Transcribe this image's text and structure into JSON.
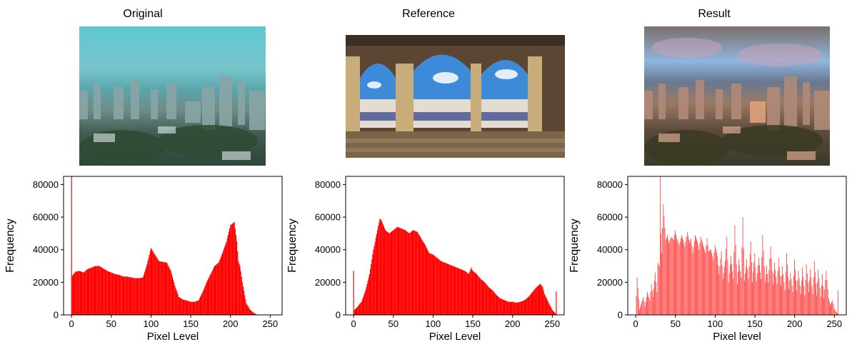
{
  "panels": [
    {
      "title": "Original",
      "image": "original-photo-city-skyline",
      "tint": "#4fb8c4"
    },
    {
      "title": "Reference",
      "image": "reference-photo-cloister-arches",
      "tint": "#c9b48f"
    },
    {
      "title": "Result",
      "image": "result-photo-city-skyline",
      "tint": "#8a7a6a"
    }
  ],
  "colors": {
    "bars": "#ff0000",
    "axis": "#000000"
  },
  "chart_data": [
    {
      "type": "bar",
      "title": "",
      "xlabel": "Pixel Level",
      "ylabel": "Frequency",
      "xlim": [
        -10,
        265
      ],
      "ylim": [
        0,
        85000
      ],
      "xticks": [
        0,
        50,
        100,
        150,
        200,
        250
      ],
      "yticks": [
        0,
        20000,
        40000,
        60000,
        80000
      ],
      "x": [
        0,
        1,
        5,
        10,
        15,
        20,
        25,
        30,
        35,
        40,
        45,
        50,
        55,
        60,
        65,
        70,
        75,
        80,
        85,
        90,
        95,
        100,
        105,
        110,
        115,
        120,
        125,
        130,
        135,
        140,
        145,
        150,
        155,
        160,
        165,
        170,
        175,
        180,
        185,
        190,
        195,
        200,
        205,
        208,
        210,
        212,
        215,
        218,
        220,
        225,
        230,
        233,
        235,
        240,
        255
      ],
      "values": [
        85000,
        24000,
        26500,
        27000,
        26000,
        28000,
        29000,
        30000,
        30000,
        28500,
        27000,
        26000,
        25000,
        24500,
        23500,
        23500,
        23000,
        22500,
        22500,
        23000,
        31000,
        41000,
        37000,
        33000,
        32500,
        32000,
        27000,
        18000,
        11000,
        9500,
        8800,
        8000,
        8000,
        9000,
        14000,
        20000,
        25000,
        30000,
        32000,
        38000,
        45000,
        55000,
        57000,
        45000,
        33000,
        30000,
        20000,
        12000,
        7000,
        3000,
        1000,
        300,
        0,
        0,
        0
      ]
    },
    {
      "type": "bar",
      "title": "",
      "xlabel": "Pixel Level",
      "ylabel": "Frequency",
      "xlim": [
        -10,
        265
      ],
      "ylim": [
        0,
        85000
      ],
      "xticks": [
        0,
        50,
        100,
        150,
        200,
        250
      ],
      "yticks": [
        0,
        20000,
        40000,
        60000,
        80000
      ],
      "x": [
        0,
        1,
        3,
        5,
        8,
        10,
        15,
        20,
        25,
        30,
        33,
        35,
        40,
        45,
        50,
        55,
        60,
        65,
        70,
        75,
        80,
        85,
        90,
        95,
        100,
        105,
        110,
        115,
        120,
        125,
        130,
        135,
        140,
        145,
        148,
        150,
        155,
        160,
        165,
        170,
        175,
        180,
        185,
        190,
        195,
        200,
        205,
        210,
        215,
        220,
        225,
        230,
        235,
        238,
        240,
        245,
        250,
        254,
        255
      ],
      "values": [
        27000,
        3000,
        4000,
        5000,
        7000,
        8000,
        15000,
        25000,
        40000,
        52000,
        59000,
        58000,
        52000,
        50000,
        52000,
        54000,
        53000,
        52000,
        50000,
        52000,
        51000,
        47000,
        43000,
        38000,
        37000,
        35000,
        33000,
        32000,
        31000,
        30000,
        29000,
        28000,
        27000,
        25000,
        29000,
        27000,
        25000,
        22000,
        20000,
        17000,
        15000,
        12000,
        10000,
        9000,
        8000,
        8000,
        7500,
        8000,
        9000,
        11000,
        14000,
        17000,
        19000,
        17000,
        13000,
        8000,
        3000,
        1000,
        14500
      ]
    },
    {
      "type": "bar",
      "title": "",
      "xlabel": "Pixel level",
      "ylabel": "Frequency",
      "xlim": [
        -10,
        265
      ],
      "ylim": [
        0,
        85000
      ],
      "xticks": [
        0,
        50,
        100,
        150,
        200,
        250
      ],
      "yticks": [
        0,
        20000,
        40000,
        60000,
        80000
      ],
      "x": [
        0,
        2,
        5,
        8,
        10,
        12,
        15,
        18,
        20,
        22,
        25,
        27,
        28,
        30,
        31,
        32,
        33,
        35,
        38,
        40,
        42,
        45,
        48,
        50,
        52,
        55,
        58,
        60,
        62,
        65,
        68,
        70,
        72,
        75,
        78,
        80,
        82,
        85,
        88,
        90,
        92,
        95,
        98,
        100,
        103,
        105,
        108,
        110,
        113,
        115,
        117,
        120,
        123,
        125,
        128,
        130,
        133,
        135,
        137,
        140,
        142,
        145,
        147,
        150,
        152,
        155,
        158,
        160,
        163,
        165,
        167,
        170,
        173,
        175,
        178,
        180,
        183,
        185,
        188,
        190,
        193,
        195,
        198,
        200,
        203,
        205,
        208,
        210,
        213,
        215,
        218,
        220,
        223,
        225,
        228,
        230,
        233,
        235,
        237,
        240,
        243,
        245,
        248,
        250,
        252,
        254,
        255
      ],
      "values": [
        0,
        23000,
        3000,
        8000,
        11000,
        5000,
        14000,
        9000,
        19000,
        11000,
        26000,
        14000,
        32000,
        30000,
        85000,
        50000,
        38000,
        68000,
        46000,
        49000,
        44000,
        48000,
        46000,
        52000,
        47000,
        43000,
        49000,
        46000,
        42000,
        51000,
        44000,
        47000,
        38000,
        49000,
        45000,
        40000,
        48000,
        43000,
        38000,
        47000,
        39000,
        40000,
        34000,
        43000,
        36000,
        25000,
        39000,
        22000,
        33000,
        48000,
        20000,
        36000,
        22000,
        55000,
        19000,
        34000,
        23000,
        60000,
        21000,
        34000,
        22000,
        45000,
        20000,
        38000,
        21000,
        35000,
        22000,
        49000,
        20000,
        30000,
        20000,
        42000,
        19000,
        32000,
        19000,
        35000,
        18000,
        30000,
        15000,
        38000,
        16000,
        26000,
        14000,
        34000,
        15000,
        27000,
        13000,
        29000,
        12000,
        31000,
        14000,
        28000,
        13000,
        33000,
        12000,
        28000,
        11000,
        25000,
        10000,
        27000,
        10000,
        6000,
        9000,
        4000,
        2000,
        1000,
        15000
      ]
    }
  ]
}
